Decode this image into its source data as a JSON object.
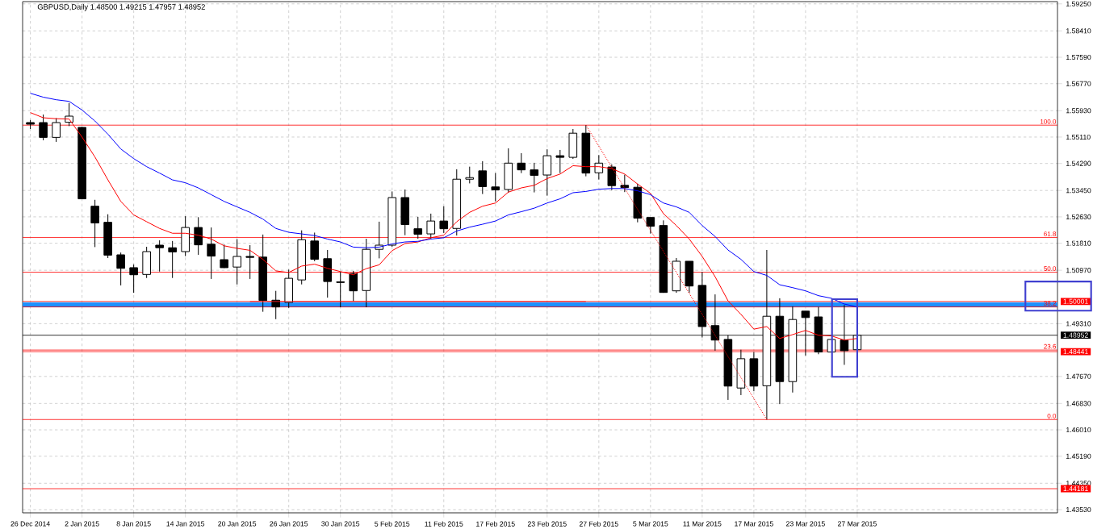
{
  "chart_data": {
    "type": "candlestick",
    "title": "GBPUSD,Daily 1.48500 1.49215 1.47957 1.48952",
    "categories": [
      "26 Dec 2014",
      null,
      null,
      null,
      "2 Jan 2015",
      null,
      null,
      null,
      "8 Jan 2015",
      null,
      null,
      null,
      "14 Jan 2015",
      null,
      null,
      null,
      "20 Jan 2015",
      null,
      null,
      null,
      "26 Jan 2015",
      null,
      null,
      null,
      "30 Jan 2015",
      null,
      null,
      null,
      "5 Feb 2015",
      null,
      null,
      null,
      "11 Feb 2015",
      null,
      null,
      null,
      "17 Feb 2015",
      null,
      null,
      null,
      "23 Feb 2015",
      null,
      null,
      null,
      "27 Feb 2015",
      null,
      null,
      null,
      "5 Mar 2015",
      null,
      null,
      null,
      "11 Mar 2015",
      null,
      null,
      null,
      "17 Mar 2015",
      null,
      null,
      null,
      "23 Mar 2015",
      null,
      null,
      null,
      "27 Mar 2015"
    ],
    "ohlc": [
      [
        1.5556,
        1.5564,
        1.5536,
        1.5551
      ],
      [
        1.5556,
        1.5581,
        1.5501,
        1.551
      ],
      [
        1.551,
        1.557,
        1.5496,
        1.5556
      ],
      [
        1.5557,
        1.5617,
        1.5545,
        1.5576
      ],
      [
        1.5541,
        1.5543,
        1.5318,
        1.5319
      ],
      [
        1.5296,
        1.5316,
        1.5169,
        1.5244
      ],
      [
        1.5246,
        1.5271,
        1.5135,
        1.5144
      ],
      [
        1.5145,
        1.5152,
        1.505,
        1.5103
      ],
      [
        1.5105,
        1.5115,
        1.5027,
        1.5083
      ],
      [
        1.5084,
        1.517,
        1.5073,
        1.5155
      ],
      [
        1.5175,
        1.519,
        1.5093,
        1.5167
      ],
      [
        1.5167,
        1.5188,
        1.5073,
        1.5154
      ],
      [
        1.5155,
        1.5265,
        1.5141,
        1.523
      ],
      [
        1.523,
        1.5262,
        1.5145,
        1.5176
      ],
      [
        1.5178,
        1.523,
        1.507,
        1.5141
      ],
      [
        1.513,
        1.5177,
        1.5104,
        1.5105
      ],
      [
        1.5107,
        1.5194,
        1.5053,
        1.514
      ],
      [
        1.514,
        1.5175,
        1.507,
        1.5137
      ],
      [
        1.5138,
        1.5208,
        1.4968,
        1.5003
      ],
      [
        1.5004,
        1.5033,
        1.4945,
        1.4983
      ],
      [
        1.4997,
        1.5099,
        1.498,
        1.5072
      ],
      [
        1.5067,
        1.5221,
        1.5053,
        1.5192
      ],
      [
        1.5188,
        1.5214,
        1.5125,
        1.5131
      ],
      [
        1.5133,
        1.516,
        1.5012,
        1.5062
      ],
      [
        1.5061,
        1.5093,
        1.4982,
        1.5059
      ],
      [
        1.5087,
        1.5095,
        1.5,
        1.5033
      ],
      [
        1.5034,
        1.5195,
        1.4982,
        1.5162
      ],
      [
        1.5162,
        1.5248,
        1.5134,
        1.5175
      ],
      [
        1.5175,
        1.5342,
        1.517,
        1.5323
      ],
      [
        1.5323,
        1.5348,
        1.5206,
        1.5239
      ],
      [
        1.5226,
        1.5263,
        1.5195,
        1.5209
      ],
      [
        1.521,
        1.5273,
        1.5194,
        1.525
      ],
      [
        1.525,
        1.5296,
        1.5213,
        1.5226
      ],
      [
        1.5227,
        1.5411,
        1.5205,
        1.538
      ],
      [
        1.538,
        1.5419,
        1.5367,
        1.5385
      ],
      [
        1.5406,
        1.5436,
        1.5334,
        1.5357
      ],
      [
        1.5356,
        1.5399,
        1.5311,
        1.5347
      ],
      [
        1.5348,
        1.5476,
        1.5338,
        1.543
      ],
      [
        1.543,
        1.5461,
        1.5399,
        1.5409
      ],
      [
        1.5409,
        1.5431,
        1.5339,
        1.5392
      ],
      [
        1.5393,
        1.5473,
        1.5329,
        1.5453
      ],
      [
        1.5453,
        1.5471,
        1.5399,
        1.5448
      ],
      [
        1.5448,
        1.5536,
        1.5443,
        1.5523
      ],
      [
        1.5523,
        1.5548,
        1.5389,
        1.5399
      ],
      [
        1.54,
        1.5455,
        1.5379,
        1.543
      ],
      [
        1.5418,
        1.5426,
        1.5346,
        1.536
      ],
      [
        1.5361,
        1.5394,
        1.534,
        1.5354
      ],
      [
        1.5355,
        1.5366,
        1.5246,
        1.5259
      ],
      [
        1.5261,
        1.5261,
        1.5211,
        1.5234
      ],
      [
        1.5236,
        1.5252,
        1.5027,
        1.5028
      ],
      [
        1.5033,
        1.5135,
        1.5027,
        1.5125
      ],
      [
        1.5125,
        1.5125,
        1.5027,
        1.5048
      ],
      [
        1.505,
        1.5092,
        1.4888,
        1.4922
      ],
      [
        1.4925,
        1.5022,
        1.4847,
        1.488
      ],
      [
        1.4882,
        1.4895,
        1.4694,
        1.4737
      ],
      [
        1.4731,
        1.485,
        1.4709,
        1.4822
      ],
      [
        1.4822,
        1.4843,
        1.4721,
        1.4737
      ],
      [
        1.4738,
        1.516,
        1.4633,
        1.4954
      ],
      [
        1.4954,
        1.501,
        1.4681,
        1.4751
      ],
      [
        1.4751,
        1.4985,
        1.4717,
        1.4944
      ],
      [
        1.497,
        1.497,
        1.4832,
        1.495
      ],
      [
        1.4952,
        1.4983,
        1.4836,
        1.4843
      ],
      [
        1.4843,
        1.4882,
        1.4843,
        1.4882
      ],
      [
        1.488,
        1.4989,
        1.4803,
        1.4847
      ],
      [
        1.485,
        1.4895,
        1.485,
        1.4895
      ]
    ],
    "series": [
      {
        "type": "line",
        "color": "#ff0000",
        "values": [
          1.5587,
          1.5571,
          1.5568,
          1.5567,
          1.5511,
          1.5449,
          1.5378,
          1.5311,
          1.5269,
          1.5248,
          1.5227,
          1.5212,
          1.5212,
          1.5206,
          1.5194,
          1.5173,
          1.5165,
          1.5159,
          1.5131,
          1.5095,
          1.509,
          1.511,
          1.5116,
          1.5103,
          1.5093,
          1.5083,
          1.5102,
          1.5114,
          1.5158,
          1.518,
          1.5185,
          1.5198,
          1.5206,
          1.5248,
          1.5277,
          1.5296,
          1.5306,
          1.534,
          1.5353,
          1.5361,
          1.5382,
          1.5396,
          1.5422,
          1.5419,
          1.5419,
          1.5413,
          1.5396,
          1.5365,
          1.5336,
          1.5273,
          1.5236,
          1.5194,
          1.514,
          1.5077,
          1.5002,
          1.496,
          1.4914,
          1.4922,
          1.4885,
          1.4897,
          1.491,
          1.4895,
          1.4893,
          1.488,
          1.4885
        ]
      },
      {
        "type": "line",
        "color": "#0000ff",
        "values": [
          1.5647,
          1.5635,
          1.5627,
          1.5622,
          1.5595,
          1.5561,
          1.552,
          1.5474,
          1.5444,
          1.5419,
          1.5399,
          1.5378,
          1.5369,
          1.5353,
          1.5332,
          1.5311,
          1.5294,
          1.5277,
          1.5256,
          1.5227,
          1.5215,
          1.521,
          1.5205,
          1.5194,
          1.5185,
          1.5169,
          1.5167,
          1.5169,
          1.5179,
          1.5185,
          1.5187,
          1.5194,
          1.5198,
          1.5219,
          1.5231,
          1.524,
          1.525,
          1.5269,
          1.5279,
          1.529,
          1.5306,
          1.5319,
          1.5338,
          1.5342,
          1.5349,
          1.5351,
          1.5351,
          1.5344,
          1.5332,
          1.5306,
          1.5294,
          1.5277,
          1.5236,
          1.5202,
          1.516,
          1.5131,
          1.5093,
          1.5081,
          1.5052,
          1.5043,
          1.5033,
          1.5018,
          1.501,
          1.4992,
          1.4983
        ]
      },
      {
        "type": "line",
        "color": "#ee1c24",
        "values": [
          null,
          null,
          null,
          null,
          null,
          null,
          null,
          null,
          null,
          null,
          null,
          null,
          null,
          null,
          null,
          null,
          null,
          1.5,
          1.5,
          1.5,
          1.5,
          1.5,
          1.5,
          1.5,
          1.5,
          1.5,
          1.5,
          1.5,
          1.5,
          1.5,
          1.5,
          1.5,
          1.5,
          1.5,
          1.5,
          1.5,
          1.5,
          1.5,
          1.5,
          1.5,
          1.5,
          1.5,
          1.5,
          1.5,
          null,
          null,
          null,
          null,
          null,
          null,
          null,
          null,
          null,
          null,
          null,
          null,
          null,
          null,
          null,
          null,
          null,
          null,
          null,
          null,
          null
        ]
      },
      {
        "type": "line",
        "color": "#ff0000",
        "line_style": "dotted",
        "values": [
          null,
          null,
          null,
          null,
          null,
          null,
          null,
          null,
          null,
          null,
          null,
          null,
          null,
          null,
          null,
          null,
          null,
          null,
          null,
          null,
          null,
          null,
          null,
          null,
          null,
          null,
          null,
          null,
          null,
          null,
          null,
          null,
          null,
          null,
          null,
          null,
          null,
          null,
          null,
          null,
          null,
          null,
          null,
          1.5548,
          null,
          null,
          null,
          null,
          null,
          null,
          null,
          null,
          null,
          null,
          null,
          null,
          null,
          1.4633,
          null,
          null,
          null,
          null,
          null,
          null,
          null
        ]
      }
    ],
    "ylim": [
      1.4343,
      1.5932
    ],
    "yticks": [
      {
        "value": 1.5925,
        "label": "1.59250"
      },
      {
        "value": 1.5841,
        "label": "1.58410"
      },
      {
        "value": 1.5759,
        "label": "1.57590"
      },
      {
        "value": 1.5677,
        "label": "1.56770"
      },
      {
        "value": 1.5593,
        "label": "1.55930"
      },
      {
        "value": 1.5511,
        "label": "1.55110"
      },
      {
        "value": 1.5429,
        "label": "1.54290"
      },
      {
        "value": 1.5345,
        "label": "1.53450"
      },
      {
        "value": 1.5263,
        "label": "1.52630"
      },
      {
        "value": 1.5181,
        "label": "1.51810"
      },
      {
        "value": 1.5097,
        "label": "1.50970"
      },
      {
        "value": 1.4931,
        "label": "1.49310"
      },
      {
        "value": 1.4767,
        "label": "1.47670"
      },
      {
        "value": 1.4683,
        "label": "1.46830"
      },
      {
        "value": 1.4601,
        "label": "1.46010"
      },
      {
        "value": 1.4519,
        "label": "1.45190"
      },
      {
        "value": 1.4435,
        "label": "1.44350"
      },
      {
        "value": 1.4353,
        "label": "1.43530"
      }
    ],
    "grid": true,
    "ref_lines": [
      {
        "axis": "y",
        "value": 1.5548,
        "color": "#ff0000"
      },
      {
        "axis": "y",
        "value": 1.5199,
        "color": "#ff0000"
      },
      {
        "axis": "y",
        "value": 1.5091,
        "color": "#ff0000"
      },
      {
        "axis": "y",
        "value": 1.4983,
        "color": "#ff0000"
      },
      {
        "axis": "y",
        "value": 1.4849,
        "color": "#ff0000"
      },
      {
        "axis": "y",
        "value": 1.4633,
        "color": "#ff0000"
      },
      {
        "axis": "y",
        "value": 1.50001,
        "label": "1.50001",
        "color": "#ff0000"
      },
      {
        "axis": "y",
        "value": 1.48952,
        "label": "1.48952",
        "color": "#000000"
      },
      {
        "axis": "y",
        "value": 1.48441,
        "label": "1.48441",
        "color": "#ff0000"
      },
      {
        "axis": "y",
        "value": 1.44181,
        "label": "1.44181",
        "color": "#ff0000"
      }
    ],
    "bands": [
      {
        "axis": "y",
        "from": 1.4982,
        "to": 1.4997,
        "color": "#1e90ff"
      }
    ],
    "annotations": [
      {
        "text": "100.0",
        "y": 1.5548
      },
      {
        "text": "61.8",
        "y": 1.5199
      },
      {
        "text": "50.0",
        "y": 1.5091
      },
      {
        "text": "38.2",
        "y": 1.4983
      },
      {
        "text": "23.6",
        "y": 1.4849
      },
      {
        "text": "0.0",
        "y": 1.4633
      }
    ]
  }
}
